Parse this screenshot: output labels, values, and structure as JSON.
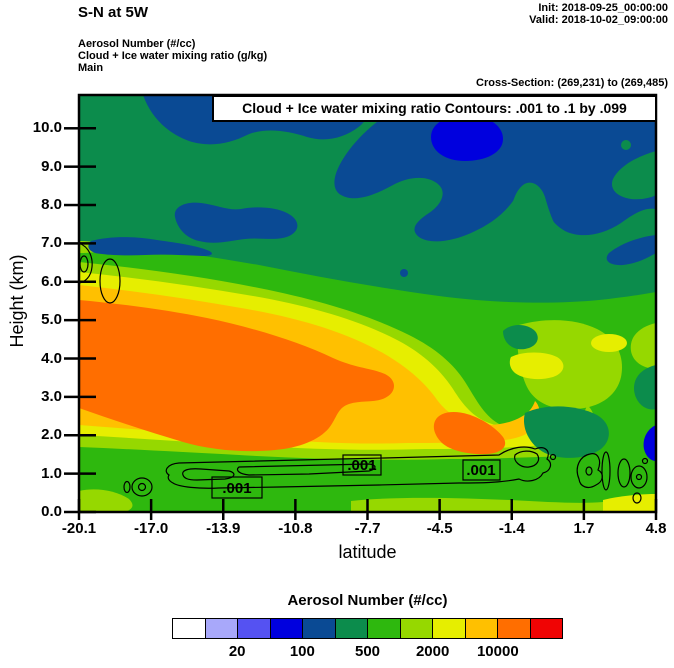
{
  "header": {
    "title": "S-N at 5W",
    "init": "Init: 2018-09-25_00:00:00",
    "valid": "Valid: 2018-10-02_09:00:00",
    "field_line1": "Aerosol Number  (#/cc)",
    "field_line2": "Cloud + Ice water mixing ratio  (g/kg)",
    "field_line3": "Main",
    "cross_section": "Cross-Section: (269,231) to (269,485)"
  },
  "plot": {
    "banner": "Cloud + Ice water mixing ratio Contours: .001 to .1 by .099",
    "xlabel": "latitude",
    "ylabel": "Height (km)",
    "x_ticks": [
      "-20.1",
      "-17.0",
      "-13.9",
      "-10.8",
      "-7.7",
      "-4.5",
      "-1.4",
      "1.7",
      "4.8"
    ],
    "y_ticks": [
      "0.0",
      "1.0",
      "2.0",
      "3.0",
      "4.0",
      "5.0",
      "6.0",
      "7.0",
      "8.0",
      "9.0",
      "10.0"
    ],
    "contour_label": ".001"
  },
  "colorbar": {
    "title": "Aerosol Number  (#/cc)",
    "ticks": [
      "20",
      "100",
      "500",
      "2000",
      "10000"
    ],
    "colors": [
      "#ffffff",
      "#a8a8fa",
      "#5552f2",
      "#0000de",
      "#0a4a94",
      "#0c8c4c",
      "#2eb80e",
      "#96d800",
      "#e6ee00",
      "#ffc000",
      "#ff6e00",
      "#f00404"
    ]
  },
  "chart_data": {
    "type": "filled_contour",
    "title": "S-N at 5W",
    "xlabel": "latitude",
    "ylabel": "Height (km)",
    "xlim": [
      -20.1,
      4.8
    ],
    "ylim": [
      0,
      10.9
    ],
    "x_ticks": [
      -20.1,
      -17.0,
      -13.9,
      -10.8,
      -7.7,
      -4.5,
      -1.4,
      1.7,
      4.8
    ],
    "y_ticks": [
      0,
      1,
      2,
      3,
      4,
      5,
      6,
      7,
      8,
      9,
      10
    ],
    "grid": false,
    "fill_variable": "Aerosol Number (#/cc)",
    "fill_scale": "logarithmic, 12 color bins",
    "fill_labeled_levels": [
      20,
      100,
      500,
      2000,
      10000
    ],
    "fill_palette": [
      "#ffffff",
      "#a8a8fa",
      "#5552f2",
      "#0000de",
      "#0a4a94",
      "#0c8c4c",
      "#2eb80e",
      "#96d800",
      "#e6ee00",
      "#ffc000",
      "#ff6e00",
      "#f00404"
    ],
    "overlay_variable": "Cloud + Ice water mixing ratio (g/kg)",
    "overlay_contour_levels": [
      0.001,
      0.1
    ],
    "overlay_contour_labels": [
      ".001",
      ".001",
      ".001"
    ],
    "init_time": "2018-09-25_00:00:00",
    "valid_time": "2018-10-02_09:00:00",
    "cross_section_gridpoints": "(269,231) to (269,485)",
    "regions": [
      {
        "color": "#0c8c4c",
        "approx_value": "200-500 #/cc",
        "where": "background over most of the upper troposphere, ~6 to 10.9 km, all latitudes"
      },
      {
        "color": "#0a4a94",
        "approx_value": "100-200 #/cc",
        "where": "band along plot top lat -17 to -8; large mass 7.5-10.5 km lat -8 to 4.8; blob 7-8.5 km near lat -15; thin streak ~6.3 km lat -19.5 to -14.5"
      },
      {
        "color": "#0000de",
        "approx_value": "50-100 #/cc",
        "where": "small pocket 9.3-10.3 km near lat -4; sliver near right edge ~2 km"
      },
      {
        "color": "#ff6e00",
        "approx_value": "10000-20000 #/cc",
        "where": "large core 2.5-5.5 km between lat -20.1 and -9, plus small pocket 1.5-2.5 km near lat -3"
      },
      {
        "color": "#ffc000",
        "approx_value": "5000-10000 #/cc",
        "where": "ring around both orange cores"
      },
      {
        "color": "#e6ee00",
        "approx_value": "2000-5000 #/cc",
        "where": "band around amber, sloping from ~6 km at lat -20 down to ~2 km mid-domain; patches on right side and bottom-right corner"
      },
      {
        "color": "#96d800",
        "approx_value": "1000-2000 #/cc",
        "where": "band outside yellow; patches right of lat -5 and along bottom boundary layer"
      },
      {
        "color": "#2eb80e",
        "approx_value": "500-1000 #/cc",
        "where": "boundary layer below ~1.5 km and mid-level band lat -5 to 4.8"
      },
      {
        "color": "black thin contours",
        "value": "0.001 g/kg cloud+ice",
        "where": "closed loops near 0.5-1.2 km from lat -18 to -1; small cells near 6-6.5 km at lat -20; cells near 1 km lat 1 to 4.5"
      }
    ]
  }
}
